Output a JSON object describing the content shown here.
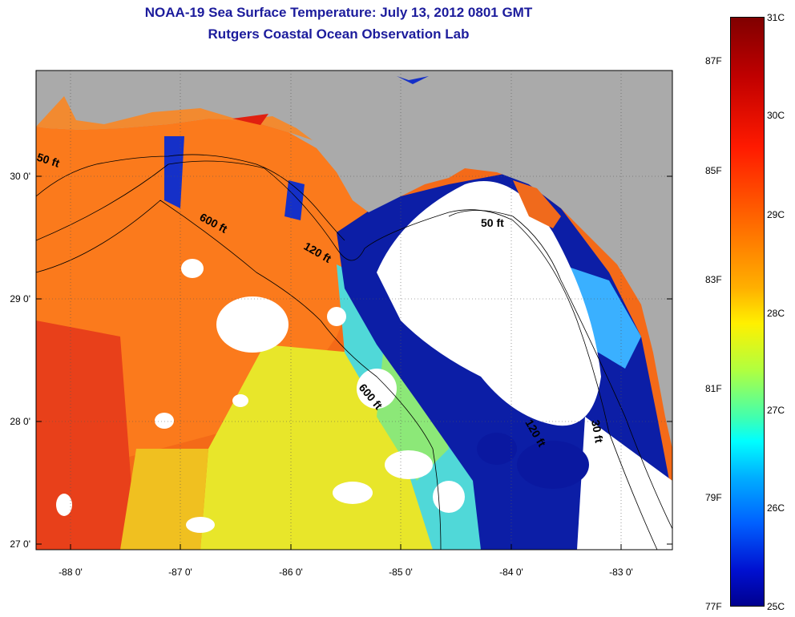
{
  "title": "NOAA-19 Sea Surface Temperature:  July 13, 2012 0801 GMT",
  "subtitle": "Rutgers Coastal Ocean Observation Lab",
  "axes": {
    "y_ticks": [
      "30 0'",
      "29 0'",
      "28 0'",
      "27 0'"
    ],
    "x_ticks": [
      "-88 0'",
      "-87 0'",
      "-86 0'",
      "-85 0'",
      "-84 0'",
      "-83 0'"
    ]
  },
  "contours": [
    "50 ft",
    "600 ft",
    "120 ft",
    "50 ft",
    "600 ft",
    "120 ft",
    "30 ft"
  ],
  "colorbar": {
    "celsius": [
      "31C",
      "30C",
      "29C",
      "28C",
      "27C",
      "26C",
      "25C"
    ],
    "fahrenheit": [
      "87F",
      "85F",
      "83F",
      "81F",
      "79F",
      "77F"
    ]
  },
  "colors": {
    "land": "#aaaaaa",
    "cloud": "#ffffff",
    "title": "#1c1c9c",
    "warm": "#ff5a10",
    "cool": "#0a1aa0"
  }
}
